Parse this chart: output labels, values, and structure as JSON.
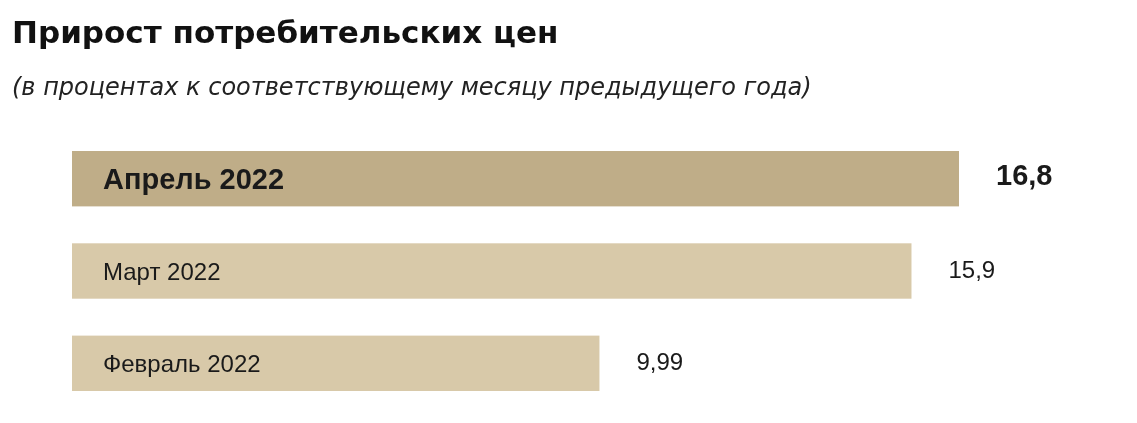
{
  "chart_data": {
    "type": "bar",
    "orientation": "horizontal",
    "relative": false,
    "title": "Прирост потребительских цен",
    "subtitle": "(в процентах к соответствующему месяцу предыдущего года)",
    "categories": [
      "Апрель 2022",
      "Март 2022",
      "Февраль 2022"
    ],
    "values": [
      16.8,
      15.9,
      9.99
    ],
    "colors": [
      "#bfad88",
      "#d8c9a9",
      "#d8c9a9"
    ],
    "value_labels": [
      "16,8",
      "15,9",
      "9,99"
    ]
  }
}
